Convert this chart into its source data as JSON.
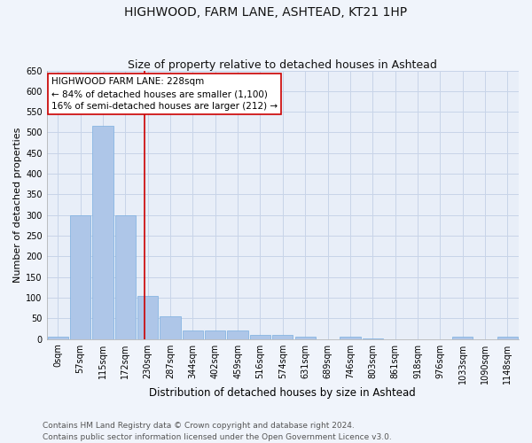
{
  "title": "HIGHWOOD, FARM LANE, ASHTEAD, KT21 1HP",
  "subtitle": "Size of property relative to detached houses in Ashtead",
  "xlabel": "Distribution of detached houses by size in Ashtead",
  "ylabel": "Number of detached properties",
  "bin_labels": [
    "0sqm",
    "57sqm",
    "115sqm",
    "172sqm",
    "230sqm",
    "287sqm",
    "344sqm",
    "402sqm",
    "459sqm",
    "516sqm",
    "574sqm",
    "631sqm",
    "689sqm",
    "746sqm",
    "803sqm",
    "861sqm",
    "918sqm",
    "976sqm",
    "1033sqm",
    "1090sqm",
    "1148sqm"
  ],
  "bar_heights": [
    5,
    300,
    515,
    300,
    105,
    55,
    20,
    20,
    20,
    10,
    10,
    5,
    0,
    5,
    1,
    0,
    0,
    0,
    5,
    0,
    5
  ],
  "bar_color": "#aec6e8",
  "bar_edge_color": "#7aafe0",
  "grid_color": "#c8d4e8",
  "background_color": "#e8eef8",
  "fig_background_color": "#f0f4fb",
  "vline_x_index": 3.84,
  "vline_color": "#cc0000",
  "ylim": [
    0,
    650
  ],
  "yticks": [
    0,
    50,
    100,
    150,
    200,
    250,
    300,
    350,
    400,
    450,
    500,
    550,
    600,
    650
  ],
  "annotation_text": "HIGHWOOD FARM LANE: 228sqm\n← 84% of detached houses are smaller (1,100)\n16% of semi-detached houses are larger (212) →",
  "annotation_box_color": "#ffffff",
  "annotation_box_edge": "#cc0000",
  "footer_text": "Contains HM Land Registry data © Crown copyright and database right 2024.\nContains public sector information licensed under the Open Government Licence v3.0.",
  "title_fontsize": 10,
  "subtitle_fontsize": 9,
  "xlabel_fontsize": 8.5,
  "ylabel_fontsize": 8,
  "tick_fontsize": 7,
  "annotation_fontsize": 7.5,
  "footer_fontsize": 6.5
}
